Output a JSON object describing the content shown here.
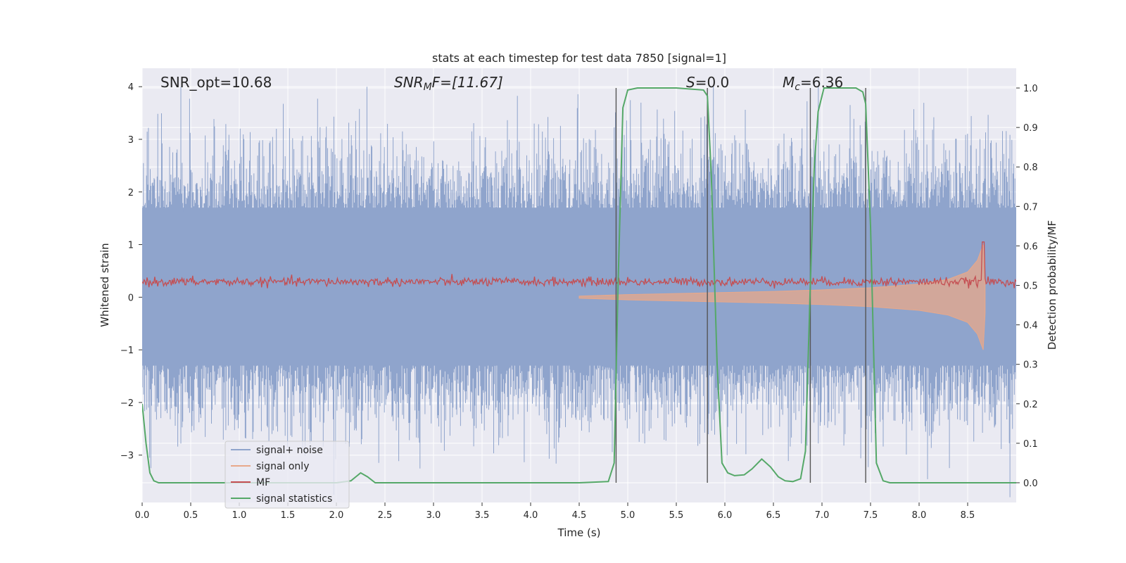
{
  "chart_data": {
    "type": "line",
    "title": "stats at each timestep for test data 7850 [signal=1]",
    "xlabel": "Time (s)",
    "ylabel_left": "Whitened strain",
    "ylabel_right": "Detection probability/MF",
    "xlim": [
      0.0,
      9.0
    ],
    "ylim_left": [
      -3.9,
      4.35
    ],
    "ylim_right": [
      -0.05,
      1.05
    ],
    "x_ticks": [
      0.0,
      0.5,
      1.0,
      1.5,
      2.0,
      2.5,
      3.0,
      3.5,
      4.0,
      4.5,
      5.0,
      5.5,
      6.0,
      6.5,
      7.0,
      7.5,
      8.0,
      8.5
    ],
    "x_tick_labels": [
      "0.0",
      "0.5",
      "1.0",
      "1.5",
      "2.0",
      "2.5",
      "3.0",
      "3.5",
      "4.0",
      "4.5",
      "5.0",
      "5.5",
      "6.0",
      "6.5",
      "7.0",
      "7.5",
      "8.0",
      "8.5"
    ],
    "y_left_ticks": [
      4,
      3,
      2,
      1,
      0,
      -1,
      -2,
      -3
    ],
    "y_left_tick_labels": [
      "4",
      "3",
      "2",
      "1",
      "0",
      "−1",
      "−2",
      "−3"
    ],
    "y_right_ticks": [
      1.0,
      0.9,
      0.8,
      0.7,
      0.6,
      0.5,
      0.4,
      0.3,
      0.2,
      0.1,
      0.0
    ],
    "y_right_tick_labels": [
      "1.0",
      "0.9",
      "0.8",
      "0.7",
      "0.6",
      "0.5",
      "0.4",
      "0.3",
      "0.2",
      "0.1",
      "0.0"
    ],
    "annotations": {
      "snr_opt": "SNR_opt=10.68",
      "snr_mf_main": "SNR",
      "snr_mf_sub": "M",
      "snr_mf_rest": "F=[11.67]",
      "s_main": "S",
      "s_rest": "=0.0",
      "mc_main": "M",
      "mc_sub": "c",
      "mc_rest": "=6.36"
    },
    "legend": {
      "position": "lower-left",
      "entries": [
        {
          "label": "signal+ noise",
          "color": "#8fa4cc"
        },
        {
          "label": "signal only",
          "color": "#e8a88a"
        },
        {
          "label": "MF",
          "color": "#c44e52"
        },
        {
          "label": "signal statistics",
          "color": "#55a868"
        }
      ]
    },
    "vertical_lines_x": [
      4.88,
      5.82,
      6.88,
      7.45
    ],
    "series": [
      {
        "name": "signal statistics",
        "axis": "right",
        "color": "#55a868",
        "x": [
          0.0,
          0.04,
          0.08,
          0.12,
          0.17,
          0.25,
          0.5,
          0.8,
          1.0,
          1.5,
          2.0,
          2.15,
          2.25,
          2.32,
          2.4,
          3.0,
          3.5,
          4.0,
          4.5,
          4.8,
          4.86,
          4.9,
          4.95,
          5.0,
          5.1,
          5.5,
          5.78,
          5.82,
          5.86,
          5.92,
          5.97,
          6.03,
          6.1,
          6.2,
          6.28,
          6.38,
          6.47,
          6.55,
          6.62,
          6.7,
          6.78,
          6.83,
          6.88,
          6.92,
          6.96,
          7.02,
          7.35,
          7.42,
          7.45,
          7.5,
          7.56,
          7.63,
          7.7,
          8.0,
          8.5,
          9.0
        ],
        "y": [
          0.2,
          0.1,
          0.025,
          0.005,
          0.0,
          0.0,
          0.0,
          0.0,
          0.0,
          0.0,
          0.0,
          0.005,
          0.025,
          0.015,
          0.0,
          0.0,
          0.0,
          0.0,
          0.0,
          0.003,
          0.05,
          0.5,
          0.95,
          0.995,
          1.0,
          1.0,
          0.995,
          0.98,
          0.78,
          0.3,
          0.05,
          0.025,
          0.018,
          0.02,
          0.035,
          0.06,
          0.04,
          0.015,
          0.005,
          0.003,
          0.01,
          0.08,
          0.5,
          0.8,
          0.94,
          1.0,
          1.0,
          0.99,
          0.96,
          0.65,
          0.05,
          0.005,
          0.0,
          0.0,
          0.0,
          0.0
        ]
      },
      {
        "name": "signal only",
        "axis": "left",
        "color": "#e8a88a",
        "description_values": "chirp envelope",
        "envelope_x": [
          4.5,
          5.0,
          5.5,
          6.0,
          6.5,
          7.0,
          7.5,
          8.0,
          8.3,
          8.5,
          8.6,
          8.66,
          8.68
        ],
        "envelope_y": [
          0.02,
          0.05,
          0.07,
          0.09,
          0.11,
          0.14,
          0.18,
          0.25,
          0.34,
          0.48,
          0.7,
          1.0,
          0.3
        ]
      },
      {
        "name": "MF",
        "axis": "right",
        "color": "#c44e52",
        "baseline": 0.509,
        "typical_range": [
          0.496,
          0.525
        ],
        "peak_x": 8.66,
        "peak_y": 0.61
      },
      {
        "name": "signal+ noise",
        "axis": "left",
        "color": "#8fa4cc",
        "dense_band": [
          -1.3,
          1.7
        ],
        "max_abs_spike": 4.0
      }
    ]
  }
}
